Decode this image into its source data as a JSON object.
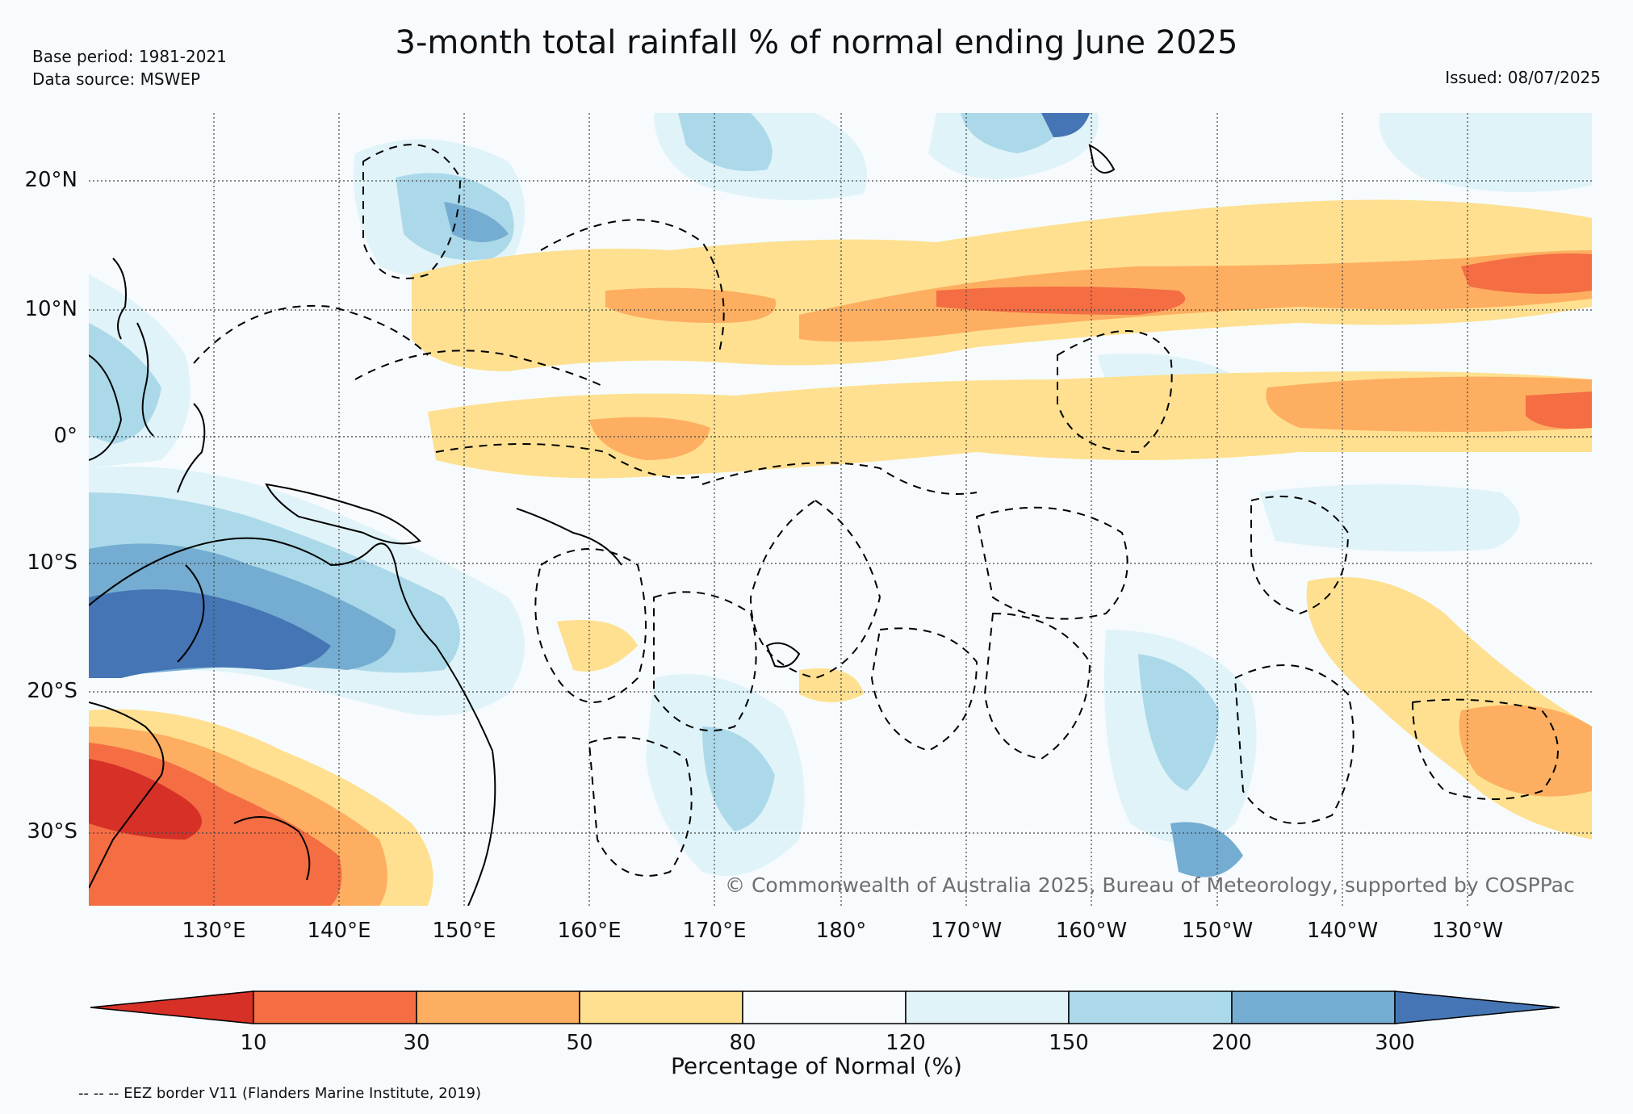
{
  "header": {
    "title": "3-month total rainfall % of normal ending June 2025",
    "base_period": "Base period: 1981-2021",
    "data_source": "Data source: MSWEP",
    "issued": "Issued: 08/07/2025"
  },
  "map": {
    "lat_ticks": [
      "20°N",
      "10°N",
      "0°",
      "10°S",
      "20°S",
      "30°S"
    ],
    "lon_ticks": [
      "130°E",
      "140°E",
      "150°E",
      "160°E",
      "170°E",
      "180°",
      "170°W",
      "160°W",
      "150°W",
      "140°W",
      "130°W"
    ],
    "credit": "© Commonwealth of Australia 2025, Bureau of Meteorology, supported by COSPPac",
    "background_color": "#f7fbfd"
  },
  "legend": {
    "label": "Percentage of Normal (%)",
    "ticks": [
      "10",
      "30",
      "50",
      "80",
      "120",
      "150",
      "200",
      "300"
    ],
    "colors": [
      "#d73027",
      "#f46d43",
      "#fdae61",
      "#fee090",
      "#f7fbfd",
      "#e0f3f8",
      "#abd9e9",
      "#74add1",
      "#4575b4"
    ],
    "eez_note": "-- -- -- EEZ border V11 (Flanders Marine Institute, 2019)"
  }
}
